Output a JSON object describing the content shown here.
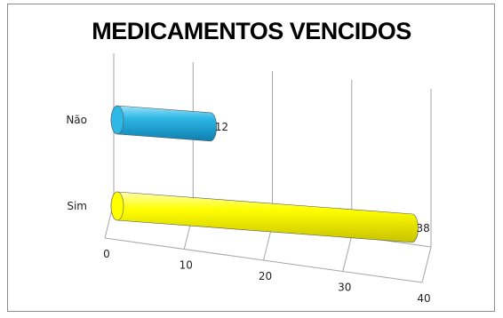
{
  "chart_data": {
    "type": "bar",
    "orientation": "horizontal",
    "style": "3d-cylinder",
    "title": "MEDICAMENTOS VENCIDOS",
    "categories": [
      "Não",
      "Sim"
    ],
    "values": [
      12,
      38
    ],
    "data_labels": [
      "12",
      "38"
    ],
    "xlim": [
      0,
      40
    ],
    "x_ticks": [
      "0",
      "10",
      "20",
      "30",
      "40"
    ],
    "grid": true,
    "legend": "none",
    "colors": [
      "#2eb8e6",
      "#ffff00"
    ]
  }
}
